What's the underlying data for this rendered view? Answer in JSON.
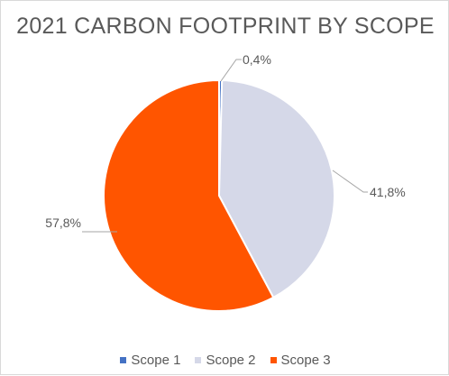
{
  "chart_data": {
    "type": "pie",
    "title": "2021 CARBON FOOTPRINT BY SCOPE",
    "categories": [
      "Scope 1",
      "Scope 2",
      "Scope 3"
    ],
    "values": [
      0.4,
      41.8,
      57.8
    ],
    "data_labels": [
      "0,4%",
      "41,8%",
      "57,8%"
    ],
    "colors": [
      "#4472c4",
      "#d5d8e8",
      "#ff5500"
    ],
    "legend": {
      "position": "bottom",
      "entries": [
        "Scope 1",
        "Scope 2",
        "Scope 3"
      ]
    }
  }
}
